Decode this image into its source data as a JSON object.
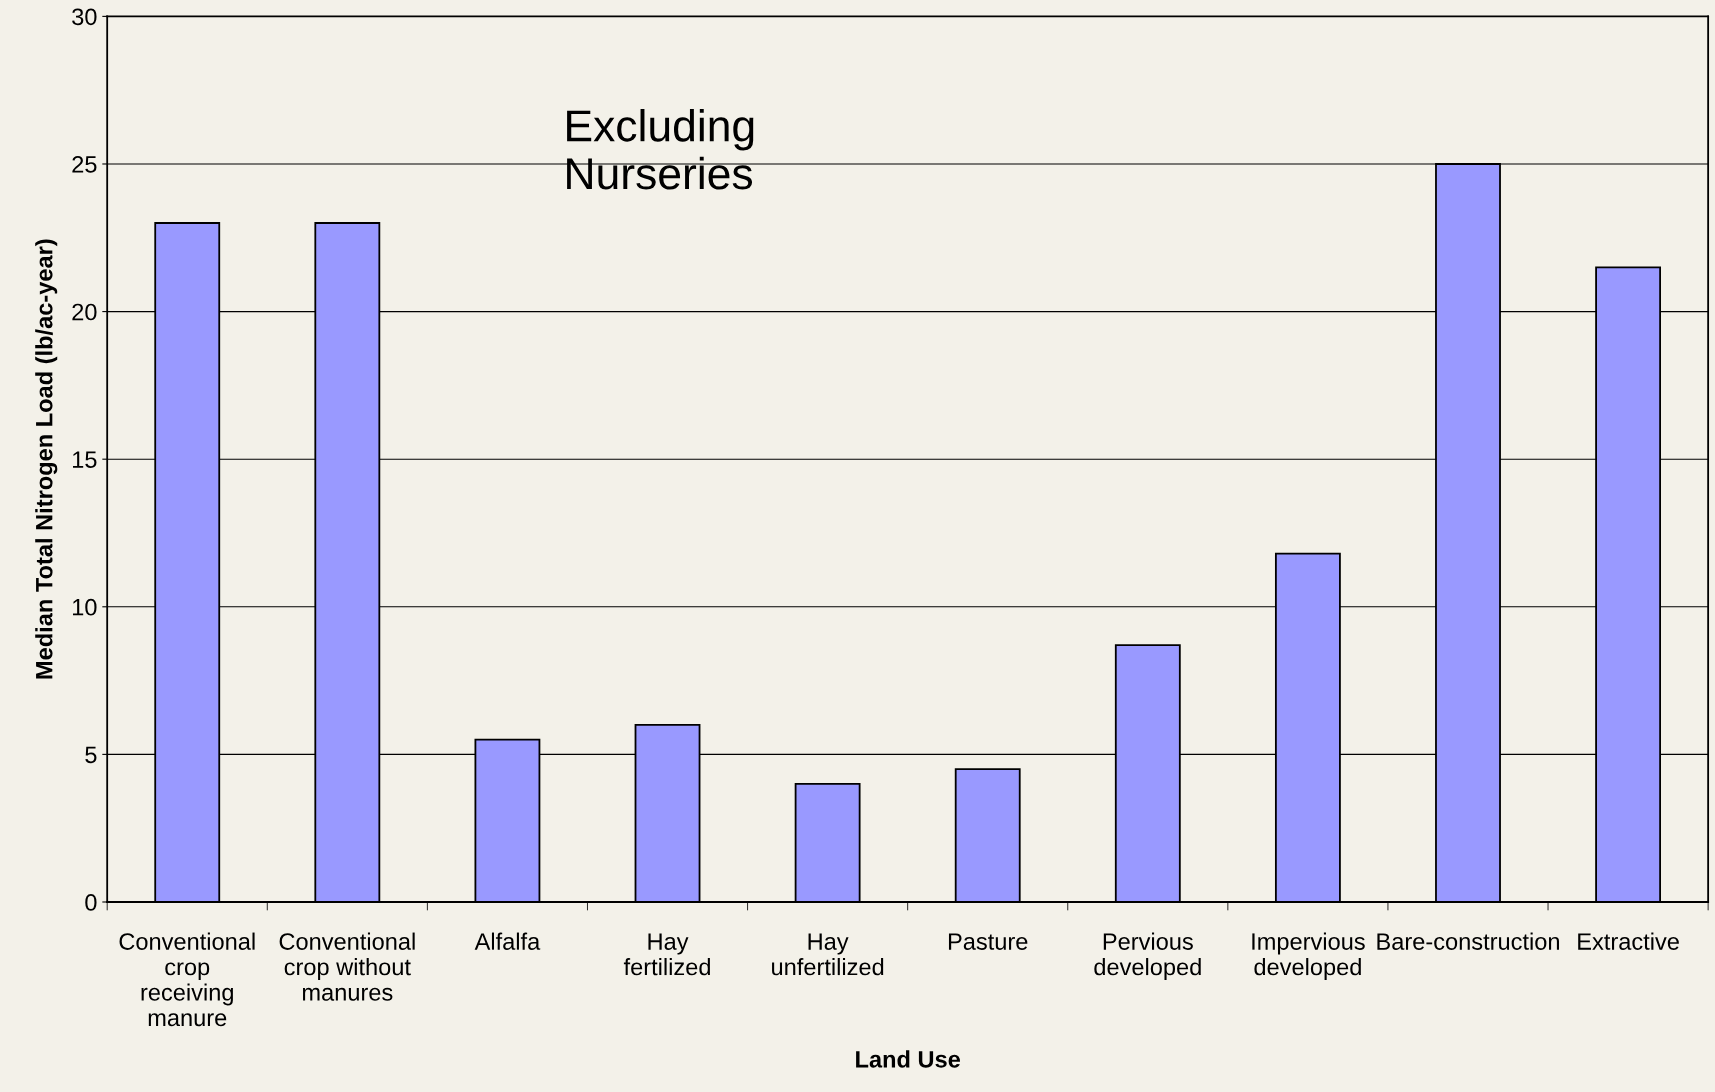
{
  "chart_data": {
    "type": "bar",
    "xlabel": "Land Use",
    "ylabel": "Median Total Nitrogen Load (lb/ac-year)",
    "categories": [
      "Conventional crop receiving manure",
      "Conventional crop without manures",
      "Alfalfa",
      "Hay fertilized",
      "Hay unfertilized",
      "Pasture",
      "Pervious developed",
      "Impervious developed",
      "Bare-construction",
      "Extractive"
    ],
    "values": [
      23,
      23,
      5.5,
      6,
      4,
      4.5,
      8.7,
      11.8,
      25,
      21.5
    ],
    "color": "#9999ff",
    "ylim": [
      0,
      30
    ],
    "yticks": [
      0,
      5,
      10,
      15,
      20,
      25,
      30
    ],
    "grid": "y",
    "annotations": [
      "Excluding\nNurseries"
    ]
  }
}
